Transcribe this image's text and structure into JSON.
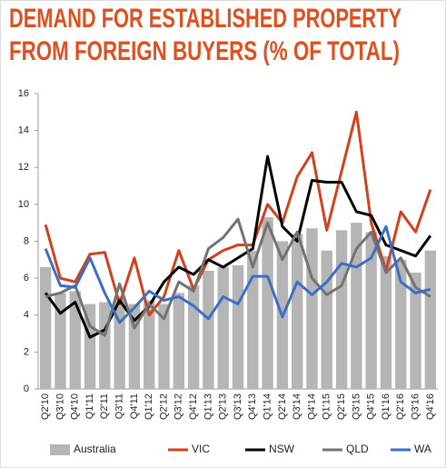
{
  "chart_data": {
    "type": "bar-line",
    "title_lines": [
      "DEMAND FOR ESTABLISHED PROPERTY",
      "FROM FOREIGN BUYERS (% OF TOTAL)"
    ],
    "categories": [
      "Q2'10",
      "Q3'10",
      "Q4'10",
      "Q1'11",
      "Q2'11",
      "Q3'11",
      "Q4'11",
      "Q1'12",
      "Q2'12",
      "Q3'12",
      "Q4'12",
      "Q1'13",
      "Q2'13",
      "Q3'13",
      "Q4'13",
      "Q1'14",
      "Q2'14",
      "Q3'14",
      "Q4'14",
      "Q1'15",
      "Q2'15",
      "Q3'15",
      "Q4'15",
      "Q1'16",
      "Q2'16",
      "Q3'16",
      "Q4'16"
    ],
    "series": [
      {
        "name": "Australia",
        "kind": "bar",
        "color": "#b5b5b5",
        "values": [
          6.6,
          5.2,
          5.3,
          4.6,
          4.7,
          5.0,
          4.6,
          4.8,
          4.6,
          5.2,
          5.6,
          6.4,
          6.6,
          6.7,
          7.5,
          9.3,
          8.0,
          8.4,
          8.7,
          7.5,
          8.6,
          9.0,
          8.5,
          7.2,
          7.0,
          6.3,
          7.5
        ]
      },
      {
        "name": "VIC",
        "kind": "line",
        "color": "#d4401b",
        "values": [
          8.9,
          6.0,
          5.8,
          7.3,
          7.4,
          4.6,
          7.1,
          4.0,
          5.0,
          7.5,
          5.4,
          7.0,
          7.5,
          7.8,
          7.8,
          10.0,
          9.0,
          11.5,
          12.8,
          8.6,
          11.8,
          15.0,
          9.0,
          6.4,
          9.6,
          8.5,
          10.8
        ]
      },
      {
        "name": "NSW",
        "kind": "line",
        "color": "#000000",
        "values": [
          5.2,
          4.1,
          4.7,
          2.8,
          3.2,
          4.8,
          3.7,
          4.5,
          5.8,
          6.6,
          6.2,
          7.0,
          6.6,
          7.1,
          7.6,
          12.6,
          8.8,
          8.0,
          11.3,
          11.2,
          11.2,
          9.6,
          9.4,
          7.8,
          7.5,
          7.2,
          8.3
        ]
      },
      {
        "name": "QLD",
        "kind": "line",
        "color": "#737373",
        "values": [
          5.0,
          5.2,
          5.6,
          3.4,
          2.9,
          5.7,
          3.3,
          4.6,
          3.8,
          5.8,
          5.3,
          7.6,
          8.2,
          9.2,
          6.6,
          9.0,
          7.0,
          8.5,
          6.0,
          5.1,
          5.6,
          7.6,
          8.5,
          6.3,
          7.1,
          5.5,
          5.0
        ]
      },
      {
        "name": "WA",
        "kind": "line",
        "color": "#3b6fc6",
        "values": [
          7.6,
          5.6,
          5.5,
          7.1,
          5.2,
          3.6,
          4.4,
          5.3,
          4.8,
          5.0,
          4.5,
          3.8,
          5.0,
          4.6,
          6.1,
          6.1,
          3.9,
          5.8,
          5.1,
          5.8,
          6.8,
          6.6,
          7.1,
          8.8,
          5.8,
          5.2,
          5.4
        ]
      }
    ],
    "ylim": [
      0,
      16
    ],
    "yticks": [
      0,
      2,
      4,
      6,
      8,
      10,
      12,
      14,
      16
    ],
    "grid": false,
    "title_color": "#e0501f"
  }
}
